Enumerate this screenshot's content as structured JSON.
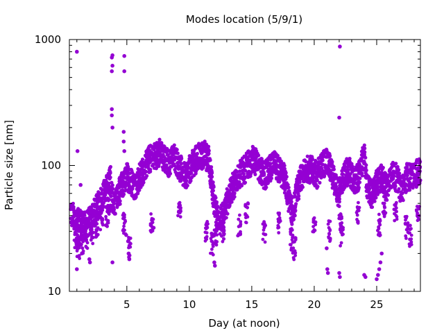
{
  "chart_data": {
    "type": "scatter",
    "title": "Modes location (5/9/1)",
    "xlabel": "Day (at noon)",
    "ylabel": "Particle size [nm]",
    "xlim": [
      0.4,
      28.5
    ],
    "ylim": [
      10,
      1000
    ],
    "y_scale": "log",
    "grid": false,
    "legend": "none",
    "x_ticks": [
      5,
      10,
      15,
      20,
      25
    ],
    "x_tick_labels": [
      "5",
      "10",
      "15",
      "20",
      "25"
    ],
    "y_ticks": [
      10,
      100,
      1000
    ],
    "y_tick_labels": [
      "10",
      "100",
      "1000"
    ],
    "series": [
      {
        "color": "#9400d3",
        "trend": [
          [
            0.5,
            42
          ],
          [
            0.8,
            38
          ],
          [
            1.0,
            36
          ],
          [
            1.3,
            34
          ],
          [
            1.6,
            33
          ],
          [
            2.0,
            36
          ],
          [
            2.4,
            42
          ],
          [
            2.8,
            50
          ],
          [
            3.1,
            58
          ],
          [
            3.4,
            66
          ],
          [
            3.7,
            78
          ],
          [
            3.8,
            58
          ],
          [
            4.0,
            48
          ],
          [
            4.3,
            58
          ],
          [
            4.7,
            72
          ],
          [
            5.0,
            82
          ],
          [
            5.3,
            76
          ],
          [
            5.6,
            68
          ],
          [
            6.0,
            80
          ],
          [
            6.4,
            96
          ],
          [
            6.8,
            112
          ],
          [
            7.2,
            118
          ],
          [
            7.6,
            128
          ],
          [
            8.0,
            112
          ],
          [
            8.4,
            104
          ],
          [
            8.8,
            118
          ],
          [
            9.2,
            98
          ],
          [
            9.6,
            82
          ],
          [
            10.0,
            92
          ],
          [
            10.4,
            108
          ],
          [
            10.8,
            118
          ],
          [
            11.2,
            122
          ],
          [
            11.6,
            110
          ],
          [
            11.9,
            58
          ],
          [
            12.2,
            40
          ],
          [
            12.5,
            36
          ],
          [
            12.8,
            44
          ],
          [
            13.2,
            58
          ],
          [
            13.6,
            72
          ],
          [
            14.0,
            84
          ],
          [
            14.4,
            92
          ],
          [
            14.8,
            104
          ],
          [
            15.2,
            112
          ],
          [
            15.6,
            96
          ],
          [
            16.0,
            82
          ],
          [
            16.4,
            92
          ],
          [
            16.8,
            100
          ],
          [
            17.2,
            92
          ],
          [
            17.6,
            80
          ],
          [
            18.0,
            52
          ],
          [
            18.3,
            40
          ],
          [
            18.6,
            62
          ],
          [
            19.0,
            82
          ],
          [
            19.4,
            96
          ],
          [
            19.8,
            92
          ],
          [
            20.2,
            84
          ],
          [
            20.6,
            100
          ],
          [
            21.0,
            110
          ],
          [
            21.4,
            88
          ],
          [
            21.8,
            64
          ],
          [
            22.0,
            60
          ],
          [
            22.4,
            84
          ],
          [
            22.8,
            92
          ],
          [
            23.2,
            72
          ],
          [
            23.6,
            84
          ],
          [
            24.0,
            120
          ],
          [
            24.2,
            72
          ],
          [
            24.6,
            58
          ],
          [
            25.0,
            72
          ],
          [
            25.4,
            80
          ],
          [
            25.8,
            66
          ],
          [
            26.2,
            84
          ],
          [
            26.6,
            80
          ],
          [
            27.0,
            62
          ],
          [
            27.4,
            82
          ],
          [
            27.8,
            80
          ],
          [
            28.2,
            86
          ],
          [
            28.5,
            88
          ]
        ],
        "secondary": [
          [
            0.9,
            26
          ],
          [
            1.1,
            22
          ],
          [
            1.4,
            24
          ],
          [
            1.8,
            27
          ],
          [
            2.2,
            29
          ],
          [
            2.6,
            33
          ],
          [
            3.0,
            38
          ],
          [
            3.4,
            40
          ],
          [
            3.6,
            46
          ],
          [
            4.8,
            34
          ],
          [
            5.2,
            22
          ],
          [
            7.0,
            36
          ],
          [
            9.2,
            42
          ],
          [
            11.4,
            30
          ],
          [
            11.8,
            24
          ],
          [
            12.1,
            28
          ],
          [
            12.7,
            30
          ],
          [
            14.0,
            34
          ],
          [
            14.6,
            42
          ],
          [
            16.0,
            30
          ],
          [
            17.2,
            34
          ],
          [
            18.2,
            26
          ],
          [
            18.4,
            22
          ],
          [
            20.0,
            36
          ],
          [
            21.2,
            30
          ],
          [
            22.1,
            34
          ],
          [
            22.2,
            28
          ],
          [
            23.5,
            42
          ],
          [
            25.2,
            34
          ],
          [
            25.6,
            46
          ],
          [
            26.5,
            44
          ],
          [
            27.4,
            32
          ],
          [
            27.7,
            28
          ],
          [
            28.3,
            44
          ]
        ],
        "outliers": [
          [
            1.0,
            800
          ],
          [
            1.05,
            130
          ],
          [
            1.3,
            70
          ],
          [
            1.0,
            15
          ],
          [
            2.0,
            18
          ],
          [
            2.05,
            17
          ],
          [
            3.85,
            750
          ],
          [
            3.8,
            720
          ],
          [
            3.85,
            620
          ],
          [
            3.8,
            560
          ],
          [
            3.8,
            280
          ],
          [
            3.8,
            250
          ],
          [
            3.85,
            200
          ],
          [
            3.85,
            17
          ],
          [
            4.8,
            740
          ],
          [
            4.8,
            560
          ],
          [
            4.75,
            185
          ],
          [
            4.75,
            155
          ],
          [
            4.8,
            130
          ],
          [
            4.95,
            28
          ],
          [
            5.1,
            25
          ],
          [
            5.15,
            20
          ],
          [
            5.2,
            18
          ],
          [
            7.15,
            32
          ],
          [
            12.0,
            17
          ],
          [
            12.05,
            16
          ],
          [
            22.05,
            880
          ],
          [
            22.0,
            240
          ],
          [
            22.0,
            14
          ],
          [
            22.05,
            13
          ],
          [
            21.0,
            22
          ],
          [
            21.05,
            15
          ],
          [
            21.1,
            14
          ],
          [
            24.0,
            13.5
          ],
          [
            24.1,
            13
          ],
          [
            25.0,
            12.5
          ],
          [
            25.1,
            13.5
          ],
          [
            25.2,
            15
          ],
          [
            25.3,
            17
          ],
          [
            25.4,
            20
          ]
        ]
      }
    ]
  }
}
